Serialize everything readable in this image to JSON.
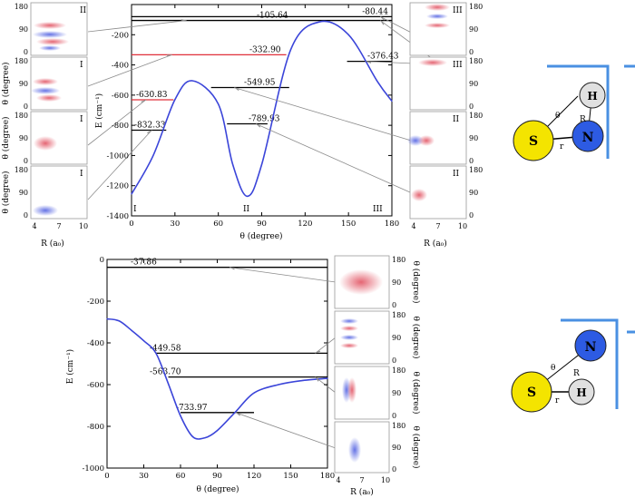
{
  "colors": {
    "curve": "#3b45d9",
    "level": "#000000",
    "level_highlight": "#e0303a",
    "arrow": "#8c8c8c",
    "atom_S": "#f4e400",
    "atom_N": "#2d5be3",
    "atom_H": "#e0e0e0",
    "bracket": "#4a90e2",
    "density_red": "#e04a5a",
    "density_blue": "#4a5ae0"
  },
  "top_panel": {
    "ylabel": "E (cm⁻¹)",
    "xlabel": "θ (degree)",
    "x_ticks": [
      "0",
      "30",
      "60",
      "90",
      "120",
      "150",
      "180"
    ],
    "y_ticks": [
      "-200",
      "-400",
      "-600",
      "-800",
      "-1000",
      "-1200",
      "-1400"
    ],
    "region_labels": [
      "I",
      "II",
      "III"
    ],
    "side_xlabel": "R (a₀)",
    "side_ylabel": "θ (degree)",
    "side_xticks": [
      "4",
      "7",
      "10"
    ],
    "side_yticks": [
      "180",
      "90",
      "0"
    ],
    "left_inset_labels": [
      "II",
      "I",
      "I",
      "I"
    ],
    "right_inset_labels": [
      "III",
      "III",
      "II",
      "II"
    ]
  },
  "bottom_panel": {
    "ylabel": "E (cm⁻¹)",
    "xlabel": "θ (degree)",
    "x_ticks": [
      "0",
      "30",
      "60",
      "90",
      "120",
      "150",
      "180"
    ],
    "y_ticks": [
      "0",
      "-200",
      "-400",
      "-600",
      "-800",
      "-1000"
    ],
    "side_xlabel": "R (a₀)",
    "side_ylabel": "θ (degree)",
    "side_xticks": [
      "4",
      "7",
      "10"
    ],
    "side_yticks": [
      "180",
      "90",
      "0"
    ]
  },
  "molecules": {
    "top": {
      "S": "S",
      "N": "N",
      "H": "H",
      "theta": "θ",
      "R": "R",
      "r": "r"
    },
    "bottom": {
      "S": "S",
      "N": "N",
      "H": "H",
      "theta": "θ",
      "R": "R",
      "r": "r"
    }
  },
  "chart_data": [
    {
      "type": "line",
      "x": [
        0,
        15,
        30,
        42,
        60,
        70,
        80,
        90,
        110,
        130,
        150,
        170,
        180
      ],
      "values": [
        -1255,
        -1000,
        -630,
        -505,
        -660,
        -1060,
        -1270,
        -1060,
        -300,
        -115,
        -200,
        -510,
        -640
      ],
      "xlabel": "θ (degree)",
      "ylabel": "E (cm⁻¹)",
      "xlim": [
        0,
        180
      ],
      "ylim": [
        -1400,
        0
      ],
      "levels": [
        {
          "label": "-80.44",
          "value": -80.44,
          "x_range": [
            0,
            180
          ]
        },
        {
          "label": "-105.64",
          "value": -105.64,
          "x_range": [
            0,
            180
          ]
        },
        {
          "label": "-332.90",
          "value": -332.9,
          "x_range": [
            0,
            107
          ],
          "highlight": true
        },
        {
          "label": "-376.43",
          "value": -376.43,
          "x_range": [
            149,
            180
          ]
        },
        {
          "label": "-549.95",
          "value": -549.95,
          "x_range": [
            55,
            109
          ]
        },
        {
          "label": "-630.83",
          "value": -630.83,
          "x_range": [
            0,
            29
          ],
          "highlight": true
        },
        {
          "label": "-789.93",
          "value": -789.93,
          "x_range": [
            66,
            94
          ]
        },
        {
          "label": "-832.33",
          "value": -832.33,
          "x_range": [
            0,
            24
          ]
        }
      ]
    },
    {
      "type": "line",
      "x": [
        0,
        10,
        20,
        30,
        40,
        50,
        60,
        70,
        80,
        90,
        105,
        120,
        140,
        160,
        180
      ],
      "values": [
        -285,
        -295,
        -340,
        -390,
        -450,
        -595,
        -750,
        -850,
        -855,
        -820,
        -730,
        -640,
        -600,
        -580,
        -570
      ],
      "xlabel": "θ (degree)",
      "ylabel": "E (cm⁻¹)",
      "xlim": [
        0,
        180
      ],
      "ylim": [
        -1000,
        0
      ],
      "levels": [
        {
          "label": "-37.86",
          "value": -37.86,
          "x_range": [
            0,
            180
          ]
        },
        {
          "label": "-449.58",
          "value": -449.58,
          "x_range": [
            40,
            180
          ]
        },
        {
          "label": "-563.70",
          "value": -563.7,
          "x_range": [
            50,
            180
          ]
        },
        {
          "label": "-733.97",
          "value": -733.97,
          "x_range": [
            60,
            120
          ]
        }
      ]
    }
  ]
}
